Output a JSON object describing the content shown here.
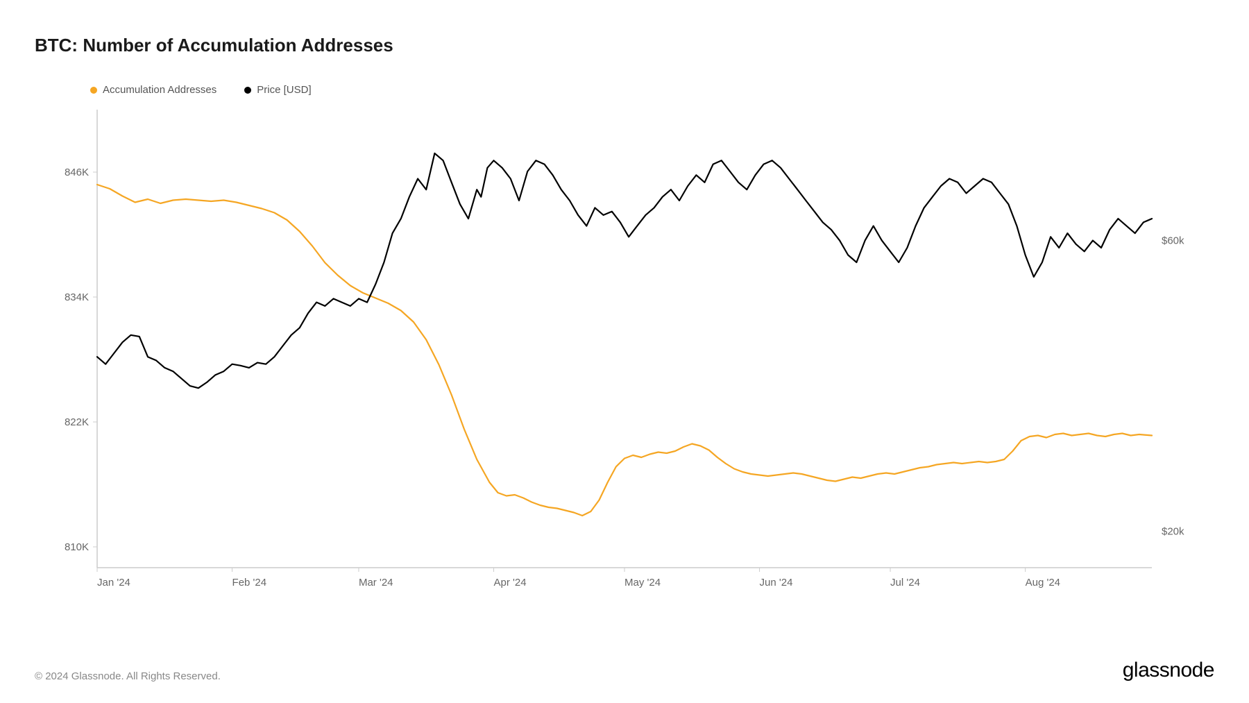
{
  "title": "BTC: Number of Accumulation Addresses",
  "legend": {
    "series1": {
      "label": "Accumulation Addresses",
      "color": "#f5a623"
    },
    "series2": {
      "label": "Price [USD]",
      "color": "#000000"
    }
  },
  "chart": {
    "type": "line",
    "background_color": "#ffffff",
    "axis_color": "#cccccc",
    "axis_line_width": 1.5,
    "line_width": 2.2,
    "x_axis": {
      "ticks": [
        "Jan '24",
        "Feb '24",
        "Mar '24",
        "Apr '24",
        "May '24",
        "Jun '24",
        "Jul '24",
        "Aug '24"
      ],
      "tick_positions": [
        0,
        0.128,
        0.248,
        0.376,
        0.5,
        0.628,
        0.752,
        0.88
      ]
    },
    "y_left": {
      "min": 808000,
      "max": 852000,
      "ticks": [
        810000,
        822000,
        834000,
        846000
      ],
      "tick_labels": [
        "810K",
        "822K",
        "834K",
        "846K"
      ]
    },
    "y_right": {
      "min": 15000,
      "max": 78000,
      "ticks": [
        20000,
        60000
      ],
      "tick_labels": [
        "$20k",
        "$60k"
      ]
    },
    "series_accumulation": {
      "color": "#f5a623",
      "data": [
        [
          0.0,
          844800
        ],
        [
          0.012,
          844400
        ],
        [
          0.024,
          843700
        ],
        [
          0.036,
          843100
        ],
        [
          0.048,
          843400
        ],
        [
          0.06,
          843000
        ],
        [
          0.072,
          843300
        ],
        [
          0.084,
          843400
        ],
        [
          0.096,
          843300
        ],
        [
          0.108,
          843200
        ],
        [
          0.12,
          843300
        ],
        [
          0.132,
          843100
        ],
        [
          0.144,
          842800
        ],
        [
          0.156,
          842500
        ],
        [
          0.168,
          842100
        ],
        [
          0.18,
          841400
        ],
        [
          0.192,
          840300
        ],
        [
          0.204,
          838900
        ],
        [
          0.216,
          837300
        ],
        [
          0.228,
          836100
        ],
        [
          0.24,
          835100
        ],
        [
          0.252,
          834400
        ],
        [
          0.264,
          833900
        ],
        [
          0.276,
          833400
        ],
        [
          0.288,
          832700
        ],
        [
          0.3,
          831600
        ],
        [
          0.312,
          829900
        ],
        [
          0.324,
          827500
        ],
        [
          0.336,
          824600
        ],
        [
          0.348,
          821300
        ],
        [
          0.36,
          818400
        ],
        [
          0.372,
          816200
        ],
        [
          0.38,
          815200
        ],
        [
          0.388,
          814900
        ],
        [
          0.396,
          815000
        ],
        [
          0.404,
          814700
        ],
        [
          0.412,
          814300
        ],
        [
          0.42,
          814000
        ],
        [
          0.428,
          813800
        ],
        [
          0.436,
          813700
        ],
        [
          0.444,
          813500
        ],
        [
          0.452,
          813300
        ],
        [
          0.46,
          813000
        ],
        [
          0.468,
          813400
        ],
        [
          0.476,
          814500
        ],
        [
          0.484,
          816200
        ],
        [
          0.492,
          817700
        ],
        [
          0.5,
          818500
        ],
        [
          0.508,
          818800
        ],
        [
          0.516,
          818600
        ],
        [
          0.524,
          818900
        ],
        [
          0.532,
          819100
        ],
        [
          0.54,
          819000
        ],
        [
          0.548,
          819200
        ],
        [
          0.556,
          819600
        ],
        [
          0.564,
          819900
        ],
        [
          0.572,
          819700
        ],
        [
          0.58,
          819300
        ],
        [
          0.588,
          818600
        ],
        [
          0.596,
          818000
        ],
        [
          0.604,
          817500
        ],
        [
          0.612,
          817200
        ],
        [
          0.62,
          817000
        ],
        [
          0.628,
          816900
        ],
        [
          0.636,
          816800
        ],
        [
          0.644,
          816900
        ],
        [
          0.652,
          817000
        ],
        [
          0.66,
          817100
        ],
        [
          0.668,
          817000
        ],
        [
          0.676,
          816800
        ],
        [
          0.684,
          816600
        ],
        [
          0.692,
          816400
        ],
        [
          0.7,
          816300
        ],
        [
          0.708,
          816500
        ],
        [
          0.716,
          816700
        ],
        [
          0.724,
          816600
        ],
        [
          0.732,
          816800
        ],
        [
          0.74,
          817000
        ],
        [
          0.748,
          817100
        ],
        [
          0.756,
          817000
        ],
        [
          0.764,
          817200
        ],
        [
          0.772,
          817400
        ],
        [
          0.78,
          817600
        ],
        [
          0.788,
          817700
        ],
        [
          0.796,
          817900
        ],
        [
          0.804,
          818000
        ],
        [
          0.812,
          818100
        ],
        [
          0.82,
          818000
        ],
        [
          0.828,
          818100
        ],
        [
          0.836,
          818200
        ],
        [
          0.844,
          818100
        ],
        [
          0.852,
          818200
        ],
        [
          0.86,
          818400
        ],
        [
          0.868,
          819200
        ],
        [
          0.876,
          820200
        ],
        [
          0.884,
          820600
        ],
        [
          0.892,
          820700
        ],
        [
          0.9,
          820500
        ],
        [
          0.908,
          820800
        ],
        [
          0.916,
          820900
        ],
        [
          0.924,
          820700
        ],
        [
          0.932,
          820800
        ],
        [
          0.94,
          820900
        ],
        [
          0.948,
          820700
        ],
        [
          0.956,
          820600
        ],
        [
          0.964,
          820800
        ],
        [
          0.972,
          820900
        ],
        [
          0.98,
          820700
        ],
        [
          0.988,
          820800
        ],
        [
          1.0,
          820700
        ]
      ]
    },
    "series_price": {
      "color": "#000000",
      "data": [
        [
          0.0,
          44000
        ],
        [
          0.008,
          43000
        ],
        [
          0.016,
          44500
        ],
        [
          0.024,
          46000
        ],
        [
          0.032,
          47000
        ],
        [
          0.04,
          46800
        ],
        [
          0.048,
          44000
        ],
        [
          0.056,
          43500
        ],
        [
          0.064,
          42500
        ],
        [
          0.072,
          42000
        ],
        [
          0.08,
          41000
        ],
        [
          0.088,
          40000
        ],
        [
          0.096,
          39700
        ],
        [
          0.104,
          40500
        ],
        [
          0.112,
          41500
        ],
        [
          0.12,
          42000
        ],
        [
          0.128,
          43000
        ],
        [
          0.136,
          42800
        ],
        [
          0.144,
          42500
        ],
        [
          0.152,
          43200
        ],
        [
          0.16,
          43000
        ],
        [
          0.168,
          44000
        ],
        [
          0.176,
          45500
        ],
        [
          0.184,
          47000
        ],
        [
          0.192,
          48000
        ],
        [
          0.2,
          50000
        ],
        [
          0.208,
          51500
        ],
        [
          0.216,
          51000
        ],
        [
          0.224,
          52000
        ],
        [
          0.232,
          51500
        ],
        [
          0.24,
          51000
        ],
        [
          0.248,
          52000
        ],
        [
          0.256,
          51500
        ],
        [
          0.264,
          54000
        ],
        [
          0.272,
          57000
        ],
        [
          0.28,
          61000
        ],
        [
          0.288,
          63000
        ],
        [
          0.296,
          66000
        ],
        [
          0.304,
          68500
        ],
        [
          0.312,
          67000
        ],
        [
          0.32,
          72000
        ],
        [
          0.328,
          71000
        ],
        [
          0.336,
          68000
        ],
        [
          0.344,
          65000
        ],
        [
          0.352,
          63000
        ],
        [
          0.36,
          67000
        ],
        [
          0.364,
          66000
        ],
        [
          0.37,
          70000
        ],
        [
          0.376,
          71000
        ],
        [
          0.384,
          70000
        ],
        [
          0.392,
          68500
        ],
        [
          0.4,
          65500
        ],
        [
          0.408,
          69500
        ],
        [
          0.416,
          71000
        ],
        [
          0.424,
          70500
        ],
        [
          0.432,
          69000
        ],
        [
          0.44,
          67000
        ],
        [
          0.448,
          65500
        ],
        [
          0.456,
          63500
        ],
        [
          0.464,
          62000
        ],
        [
          0.472,
          64500
        ],
        [
          0.48,
          63500
        ],
        [
          0.488,
          64000
        ],
        [
          0.496,
          62500
        ],
        [
          0.504,
          60500
        ],
        [
          0.512,
          62000
        ],
        [
          0.52,
          63500
        ],
        [
          0.528,
          64500
        ],
        [
          0.536,
          66000
        ],
        [
          0.544,
          67000
        ],
        [
          0.552,
          65500
        ],
        [
          0.56,
          67500
        ],
        [
          0.568,
          69000
        ],
        [
          0.576,
          68000
        ],
        [
          0.584,
          70500
        ],
        [
          0.592,
          71000
        ],
        [
          0.6,
          69500
        ],
        [
          0.608,
          68000
        ],
        [
          0.616,
          67000
        ],
        [
          0.624,
          69000
        ],
        [
          0.632,
          70500
        ],
        [
          0.64,
          71000
        ],
        [
          0.648,
          70000
        ],
        [
          0.656,
          68500
        ],
        [
          0.664,
          67000
        ],
        [
          0.672,
          65500
        ],
        [
          0.68,
          64000
        ],
        [
          0.688,
          62500
        ],
        [
          0.696,
          61500
        ],
        [
          0.704,
          60000
        ],
        [
          0.712,
          58000
        ],
        [
          0.72,
          57000
        ],
        [
          0.728,
          60000
        ],
        [
          0.736,
          62000
        ],
        [
          0.744,
          60000
        ],
        [
          0.752,
          58500
        ],
        [
          0.76,
          57000
        ],
        [
          0.768,
          59000
        ],
        [
          0.776,
          62000
        ],
        [
          0.784,
          64500
        ],
        [
          0.792,
          66000
        ],
        [
          0.8,
          67500
        ],
        [
          0.808,
          68500
        ],
        [
          0.816,
          68000
        ],
        [
          0.824,
          66500
        ],
        [
          0.832,
          67500
        ],
        [
          0.84,
          68500
        ],
        [
          0.848,
          68000
        ],
        [
          0.856,
          66500
        ],
        [
          0.864,
          65000
        ],
        [
          0.872,
          62000
        ],
        [
          0.88,
          58000
        ],
        [
          0.888,
          55000
        ],
        [
          0.896,
          57000
        ],
        [
          0.904,
          60500
        ],
        [
          0.912,
          59000
        ],
        [
          0.92,
          61000
        ],
        [
          0.928,
          59500
        ],
        [
          0.936,
          58500
        ],
        [
          0.944,
          60000
        ],
        [
          0.952,
          59000
        ],
        [
          0.96,
          61500
        ],
        [
          0.968,
          63000
        ],
        [
          0.976,
          62000
        ],
        [
          0.984,
          61000
        ],
        [
          0.992,
          62500
        ],
        [
          1.0,
          63000
        ]
      ]
    }
  },
  "footer": {
    "copyright": "© 2024 Glassnode. All Rights Reserved.",
    "brand": "glassnode"
  }
}
